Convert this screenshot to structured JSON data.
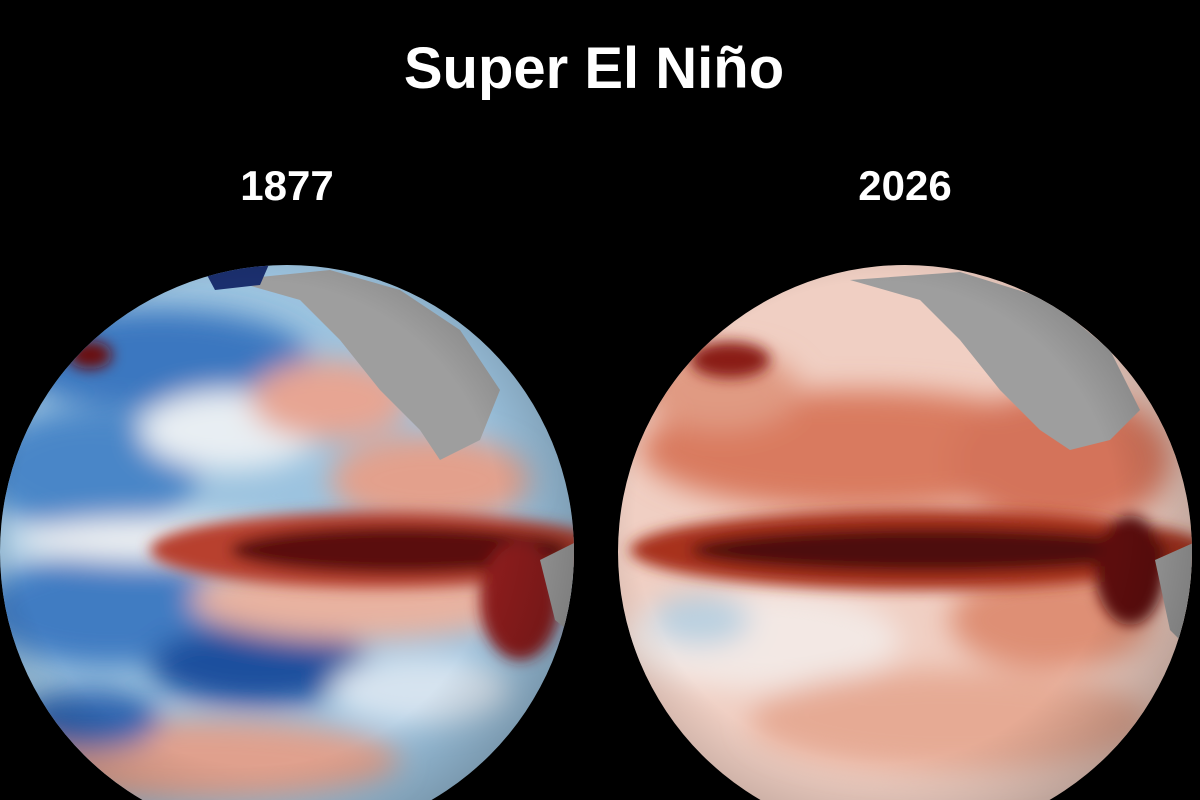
{
  "header": {
    "title": "Super El Niño"
  },
  "panels": [
    {
      "label": "1877"
    },
    {
      "label": "2026"
    }
  ]
}
